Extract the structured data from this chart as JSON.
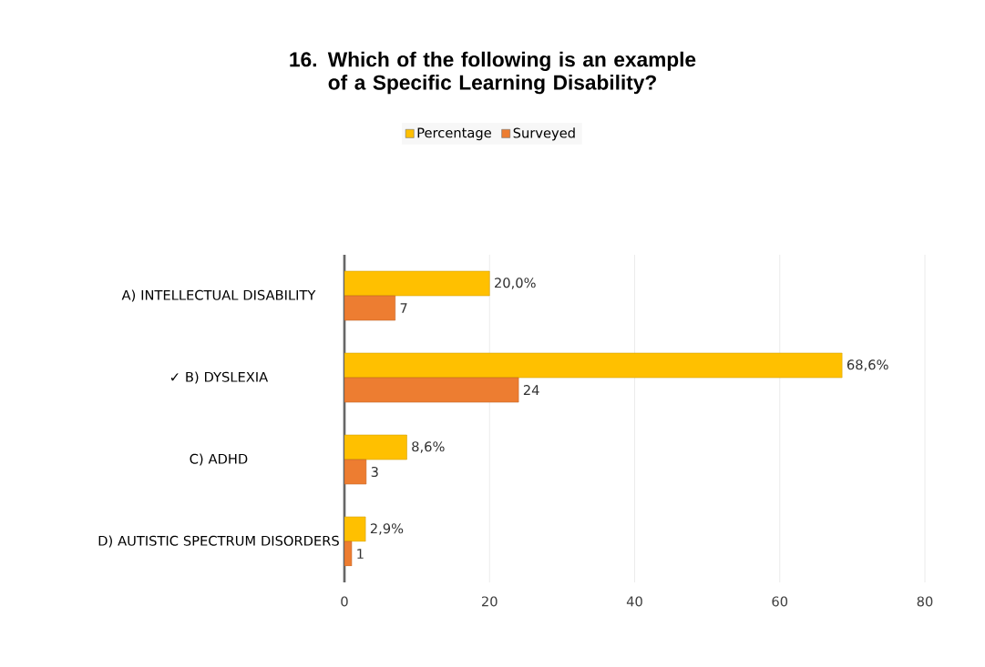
{
  "chart_data": {
    "type": "bar",
    "orientation": "horizontal",
    "title": "16. Which of the following is an example of a Specific Learning Disability?",
    "categories": [
      "A) INTELLECTUAL DISABILITY",
      "✓ B) DYSLEXIA",
      "C) ADHD",
      "D) AUTISTIC SPECTRUM DISORDERS"
    ],
    "series": [
      {
        "name": "Percentage",
        "color": "#ffc000",
        "values": [
          20.0,
          68.6,
          8.6,
          2.9
        ],
        "value_labels": [
          "20,0%",
          "68,6%",
          "8,6%",
          "2,9%"
        ]
      },
      {
        "name": "Surveyed",
        "color": "#ed7d31",
        "values": [
          7,
          24,
          3,
          1
        ],
        "value_labels": [
          "7",
          "24",
          "3",
          "1"
        ]
      }
    ],
    "xlim": [
      0,
      80
    ],
    "xticks": [
      0,
      20,
      40,
      60,
      80
    ],
    "grid": "x",
    "legend": "top"
  }
}
